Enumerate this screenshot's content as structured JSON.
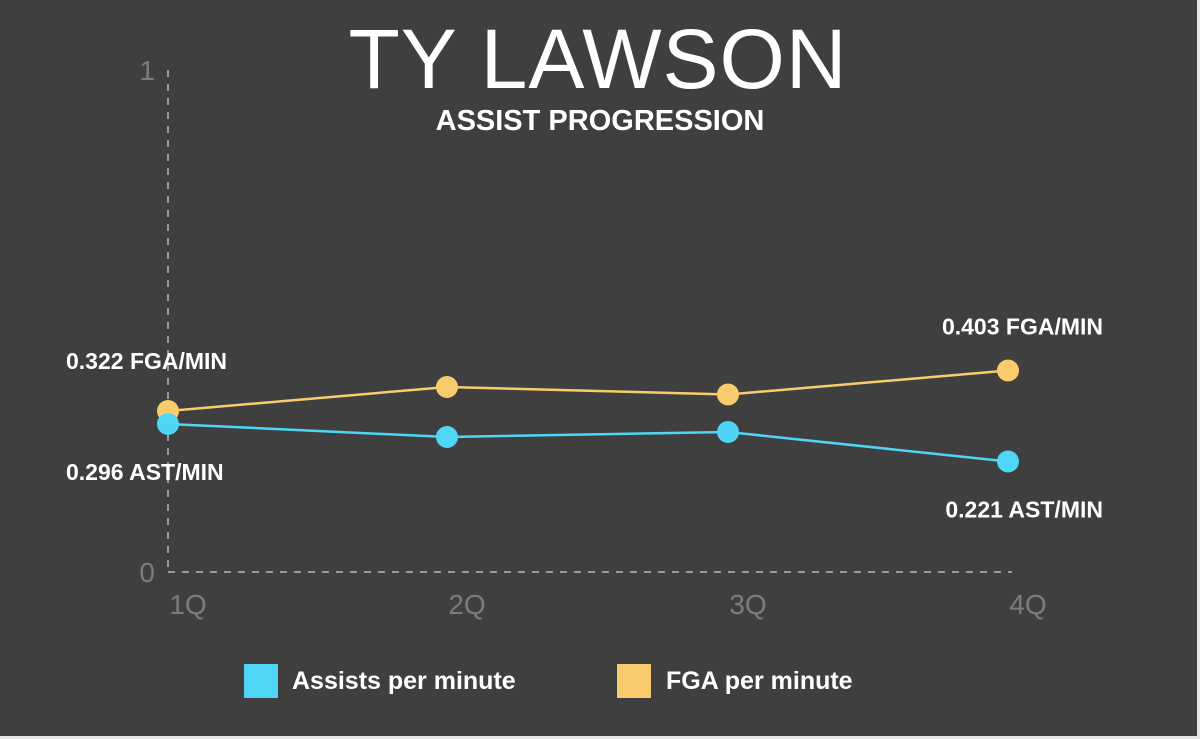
{
  "chart_data": {
    "type": "line",
    "title": "TY LAWSON",
    "subtitle": "ASSIST PROGRESSION",
    "categories": [
      "1Q",
      "2Q",
      "3Q",
      "4Q"
    ],
    "ylim": [
      0,
      1
    ],
    "yticks": [
      "0",
      "1"
    ],
    "grid": false,
    "legend_position": "bottom",
    "series": [
      {
        "name": "Assists per minute",
        "color": "#4fd6f6",
        "values": [
          0.296,
          0.27,
          0.28,
          0.221
        ]
      },
      {
        "name": "FGA per minute",
        "color": "#f8cc6c",
        "values": [
          0.322,
          0.37,
          0.355,
          0.403
        ]
      }
    ],
    "annotations": [
      {
        "text": "0.322 FGA/MIN",
        "series": 1,
        "index": 0
      },
      {
        "text": "0.296 AST/MIN",
        "series": 0,
        "index": 0
      },
      {
        "text": "0.403 FGA/MIN",
        "series": 1,
        "index": 3
      },
      {
        "text": "0.221 AST/MIN",
        "series": 0,
        "index": 3
      }
    ]
  }
}
